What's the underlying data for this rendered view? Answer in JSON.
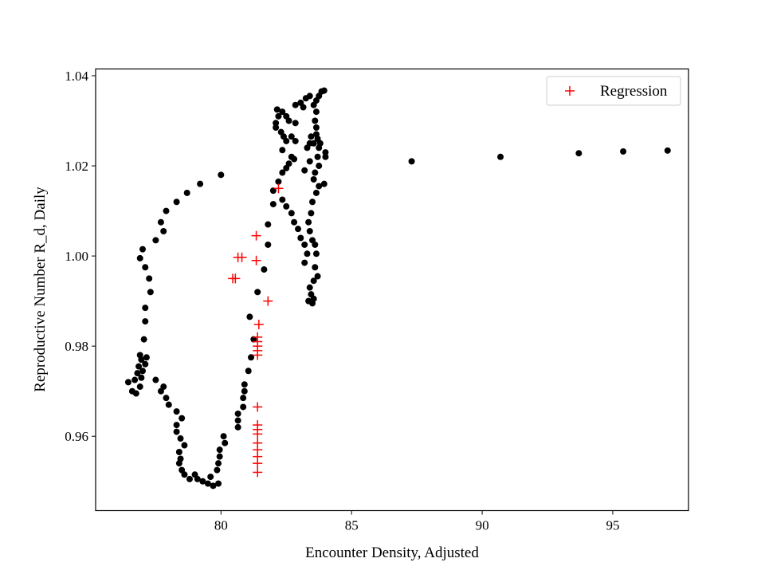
{
  "chart_data": {
    "type": "scatter",
    "title": "",
    "xlabel": "Encounter Density, Adjusted",
    "ylabel": "Reproductive Number R_d, Daily",
    "xlim": [
      75.2,
      97.9
    ],
    "ylim": [
      0.9435,
      1.0415
    ],
    "xticks": [
      80,
      85,
      90,
      95
    ],
    "yticks": [
      0.96,
      0.98,
      1.0,
      1.02,
      1.04
    ],
    "xtick_labels": [
      "80",
      "85",
      "90",
      "95"
    ],
    "ytick_labels": [
      "0.96",
      "0.98",
      "1.00",
      "1.02",
      "1.04"
    ],
    "grid": false,
    "legend": {
      "placement": "top-right",
      "entries": [
        "Regression"
      ]
    },
    "series": [
      {
        "marker": "dot",
        "color": "#000000",
        "points": [
          [
            80.0,
            1.018
          ],
          [
            79.2,
            1.016
          ],
          [
            78.7,
            1.014
          ],
          [
            78.3,
            1.012
          ],
          [
            77.9,
            1.01
          ],
          [
            77.7,
            1.0075
          ],
          [
            77.8,
            1.0055
          ],
          [
            77.5,
            1.0035
          ],
          [
            77.0,
            1.0015
          ],
          [
            76.9,
            0.9995
          ],
          [
            77.1,
            0.9975
          ],
          [
            77.25,
            0.995
          ],
          [
            77.3,
            0.992
          ],
          [
            77.1,
            0.9885
          ],
          [
            77.1,
            0.9855
          ],
          [
            77.05,
            0.9815
          ],
          [
            76.9,
            0.978
          ],
          [
            76.95,
            0.977
          ],
          [
            77.15,
            0.9775
          ],
          [
            77.1,
            0.976
          ],
          [
            76.85,
            0.9755
          ],
          [
            77.0,
            0.9745
          ],
          [
            76.8,
            0.974
          ],
          [
            76.95,
            0.973
          ],
          [
            76.7,
            0.9725
          ],
          [
            76.45,
            0.972
          ],
          [
            76.9,
            0.971
          ],
          [
            76.6,
            0.97
          ],
          [
            76.75,
            0.9695
          ],
          [
            77.5,
            0.9725
          ],
          [
            77.8,
            0.971
          ],
          [
            77.7,
            0.97
          ],
          [
            77.9,
            0.9685
          ],
          [
            78.0,
            0.967
          ],
          [
            78.3,
            0.9655
          ],
          [
            78.5,
            0.964
          ],
          [
            78.3,
            0.9625
          ],
          [
            78.3,
            0.961
          ],
          [
            78.45,
            0.9595
          ],
          [
            78.6,
            0.958
          ],
          [
            78.4,
            0.9565
          ],
          [
            78.45,
            0.955
          ],
          [
            78.4,
            0.954
          ],
          [
            78.5,
            0.9525
          ],
          [
            78.6,
            0.9515
          ],
          [
            78.8,
            0.9505
          ],
          [
            79.0,
            0.9515
          ],
          [
            79.1,
            0.9505
          ],
          [
            79.3,
            0.95
          ],
          [
            79.5,
            0.9495
          ],
          [
            79.7,
            0.949
          ],
          [
            79.9,
            0.9495
          ],
          [
            79.6,
            0.951
          ],
          [
            79.85,
            0.9525
          ],
          [
            79.9,
            0.954
          ],
          [
            79.95,
            0.9555
          ],
          [
            79.95,
            0.957
          ],
          [
            80.15,
            0.9585
          ],
          [
            80.1,
            0.96
          ],
          [
            80.65,
            0.962
          ],
          [
            80.65,
            0.9635
          ],
          [
            80.65,
            0.965
          ],
          [
            80.85,
            0.9665
          ],
          [
            80.85,
            0.9685
          ],
          [
            80.9,
            0.97
          ],
          [
            80.9,
            0.9715
          ],
          [
            81.05,
            0.9745
          ],
          [
            81.15,
            0.9775
          ],
          [
            81.25,
            0.9815
          ],
          [
            81.1,
            0.9865
          ],
          [
            81.4,
            0.992
          ],
          [
            81.65,
            0.997
          ],
          [
            81.8,
            1.0025
          ],
          [
            81.8,
            1.007
          ],
          [
            82.0,
            1.0115
          ],
          [
            82.0,
            1.0145
          ],
          [
            82.2,
            1.0165
          ],
          [
            82.35,
            1.0185
          ],
          [
            82.5,
            1.0195
          ],
          [
            82.6,
            1.0205
          ],
          [
            82.8,
            1.0215
          ],
          [
            82.35,
            1.0235
          ],
          [
            82.5,
            1.0255
          ],
          [
            82.7,
            1.0265
          ],
          [
            82.85,
            1.0255
          ],
          [
            82.3,
            1.0275
          ],
          [
            82.4,
            1.0265
          ],
          [
            82.1,
            1.0285
          ],
          [
            82.1,
            1.0295
          ],
          [
            82.2,
            1.031
          ],
          [
            82.15,
            1.0325
          ],
          [
            82.35,
            1.032
          ],
          [
            82.5,
            1.031
          ],
          [
            82.6,
            1.03
          ],
          [
            82.85,
            1.0295
          ],
          [
            82.85,
            1.0335
          ],
          [
            83.05,
            1.034
          ],
          [
            83.15,
            1.033
          ],
          [
            83.25,
            1.035
          ],
          [
            83.4,
            1.0355
          ],
          [
            83.55,
            1.0335
          ],
          [
            83.65,
            1.0345
          ],
          [
            83.75,
            1.0355
          ],
          [
            83.85,
            1.0365
          ],
          [
            83.95,
            1.0367
          ],
          [
            83.65,
            1.032
          ],
          [
            83.6,
            1.03
          ],
          [
            83.65,
            1.0285
          ],
          [
            83.65,
            1.027
          ],
          [
            83.7,
            1.026
          ],
          [
            83.8,
            1.025
          ],
          [
            83.55,
            1.025
          ],
          [
            83.4,
            1.025
          ],
          [
            83.45,
            1.0265
          ],
          [
            83.75,
            1.024
          ],
          [
            83.7,
            1.022
          ],
          [
            83.75,
            1.02
          ],
          [
            83.6,
            1.0185
          ],
          [
            83.55,
            1.017
          ],
          [
            83.75,
            1.0155
          ],
          [
            83.65,
            1.014
          ],
          [
            83.5,
            1.012
          ],
          [
            83.45,
            1.0095
          ],
          [
            83.35,
            1.0075
          ],
          [
            83.4,
            1.0055
          ],
          [
            83.5,
            1.0035
          ],
          [
            83.6,
            1.0025
          ],
          [
            83.65,
            1.0005
          ],
          [
            83.6,
            0.9975
          ],
          [
            83.7,
            0.9955
          ],
          [
            83.55,
            0.9945
          ],
          [
            83.4,
            0.993
          ],
          [
            83.45,
            0.9915
          ],
          [
            83.35,
            0.99
          ],
          [
            83.5,
            0.9895
          ],
          [
            83.55,
            0.9905
          ],
          [
            83.2,
            0.9985
          ],
          [
            83.3,
            1.0005
          ],
          [
            83.2,
            1.0025
          ],
          [
            83.05,
            1.004
          ],
          [
            82.95,
            1.006
          ],
          [
            82.8,
            1.0075
          ],
          [
            82.7,
            1.0095
          ],
          [
            82.5,
            1.011
          ],
          [
            82.35,
            1.0125
          ],
          [
            82.7,
            1.022
          ],
          [
            83.2,
            1.019
          ],
          [
            83.4,
            1.021
          ],
          [
            83.3,
            1.024
          ],
          [
            83.95,
            1.016
          ],
          [
            84.0,
            1.023
          ],
          [
            84.0,
            1.022
          ],
          [
            87.3,
            1.021
          ],
          [
            90.7,
            1.022
          ],
          [
            93.7,
            1.0228
          ],
          [
            95.4,
            1.0232
          ],
          [
            97.1,
            1.0234
          ]
        ]
      },
      {
        "name": "Regression",
        "marker": "plus",
        "color": "#ff0000",
        "points": [
          [
            82.2,
            1.015
          ],
          [
            81.35,
            1.0045
          ],
          [
            80.65,
            0.9997
          ],
          [
            80.8,
            0.9997
          ],
          [
            81.35,
            0.999
          ],
          [
            81.8,
            0.99
          ],
          [
            80.45,
            0.995
          ],
          [
            80.55,
            0.995
          ],
          [
            81.45,
            0.9848
          ],
          [
            81.4,
            0.982
          ],
          [
            81.4,
            0.981
          ],
          [
            81.4,
            0.98
          ],
          [
            81.4,
            0.979
          ],
          [
            81.4,
            0.978
          ],
          [
            81.4,
            0.9665
          ],
          [
            81.4,
            0.9625
          ],
          [
            81.4,
            0.9615
          ],
          [
            81.4,
            0.9605
          ],
          [
            81.4,
            0.9585
          ],
          [
            81.4,
            0.957
          ],
          [
            81.4,
            0.9555
          ],
          [
            81.4,
            0.954
          ],
          [
            81.4,
            0.952
          ]
        ]
      }
    ]
  }
}
